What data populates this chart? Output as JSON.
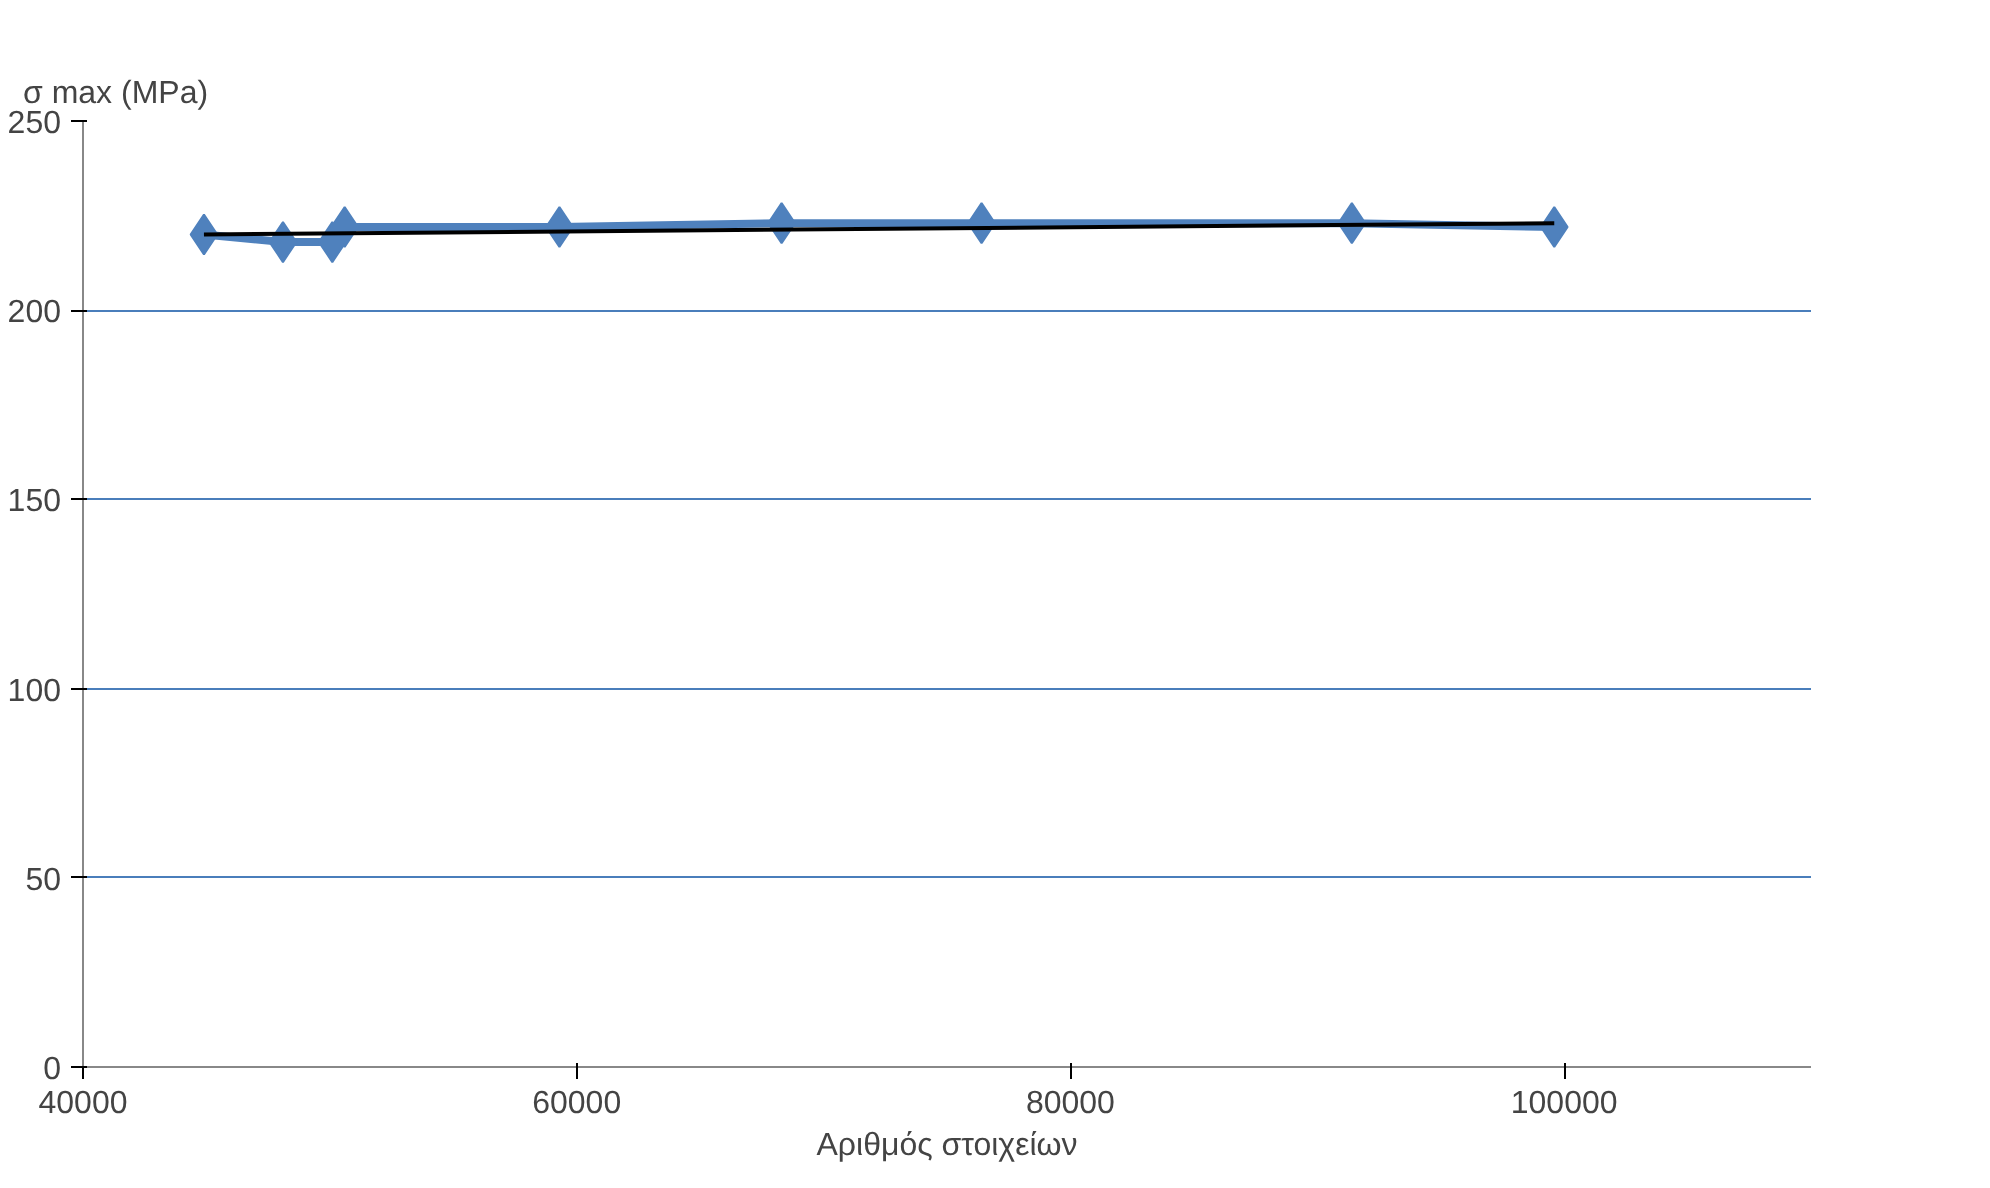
{
  "chart_data": {
    "type": "line",
    "ylabel": "σ max (MPa)",
    "xlabel": "Αριθμός στοιχείων",
    "xlim": [
      40000,
      110000
    ],
    "xticks": [
      40000,
      60000,
      80000,
      100000
    ],
    "ylim": [
      0,
      250
    ],
    "yticks": [
      0,
      50,
      100,
      150,
      200,
      250
    ],
    "grid": "y",
    "marker": "diamond",
    "series": [
      {
        "color": "#4f81bd",
        "x": [
          44900,
          48100,
          50100,
          50600,
          59300,
          68300,
          76400,
          91400,
          99600
        ],
        "values": [
          220,
          218,
          218,
          222,
          222,
          223,
          223,
          223,
          222
        ]
      },
      {
        "color": "#000000",
        "type": "line",
        "marker": "none",
        "x": [
          44900,
          99600
        ],
        "values": [
          220,
          223
        ]
      }
    ]
  }
}
